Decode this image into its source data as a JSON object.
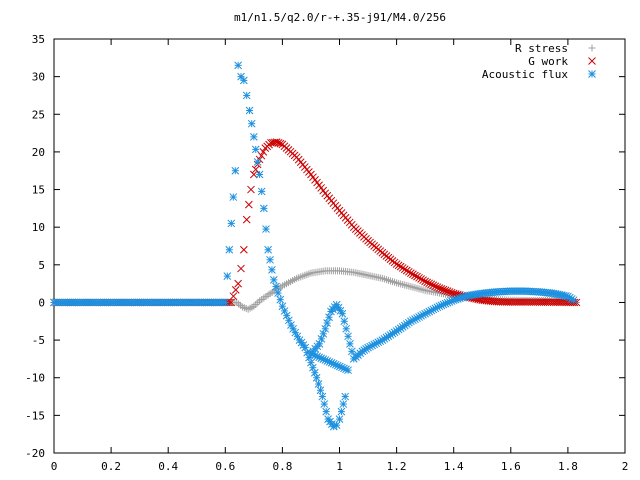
{
  "chart_data": {
    "type": "scatter",
    "title": "m1/n1.5/q2.0/r-+.35-j91/M4.0/256",
    "xlabel": "",
    "ylabel": "",
    "xlim": [
      0,
      2
    ],
    "ylim": [
      -20,
      35
    ],
    "x_ticks": [
      0,
      0.2,
      0.4,
      0.6,
      0.8,
      1,
      1.2,
      1.4,
      1.6,
      1.8,
      2
    ],
    "x_tick_labels": [
      "0",
      "0.2",
      "0.4",
      "0.6",
      "0.8",
      "1",
      "1.2",
      "1.4",
      "1.6",
      "1.8",
      "2"
    ],
    "y_ticks": [
      -20,
      -15,
      -10,
      -5,
      0,
      5,
      10,
      15,
      20,
      25,
      30,
      35
    ],
    "y_tick_labels": [
      "-20",
      "-15",
      "-10",
      "-5",
      "0",
      "5",
      "10",
      "15",
      "20",
      "25",
      "30",
      "35"
    ],
    "legend_position": "top-right",
    "series": [
      {
        "name": "R stress",
        "marker": "plus",
        "color": "#a0a0a0",
        "points": [
          [
            0.0,
            0
          ],
          [
            0.6,
            0
          ],
          [
            0.64,
            0
          ],
          [
            0.66,
            -0.6
          ],
          [
            0.68,
            -0.9
          ],
          [
            0.7,
            -0.5
          ],
          [
            0.72,
            0.2
          ],
          [
            0.75,
            1.0
          ],
          [
            0.8,
            2.2
          ],
          [
            0.85,
            3.2
          ],
          [
            0.9,
            3.9
          ],
          [
            0.95,
            4.2
          ],
          [
            1.0,
            4.2
          ],
          [
            1.05,
            4.0
          ],
          [
            1.1,
            3.6
          ],
          [
            1.15,
            3.2
          ],
          [
            1.2,
            2.6
          ],
          [
            1.3,
            1.6
          ],
          [
            1.4,
            0.9
          ],
          [
            1.5,
            0.5
          ],
          [
            1.6,
            0.3
          ],
          [
            1.7,
            0.25
          ],
          [
            1.75,
            0.3
          ],
          [
            1.8,
            0.2
          ],
          [
            1.83,
            0
          ]
        ]
      },
      {
        "name": "G work",
        "marker": "cross",
        "color": "#cc0000",
        "points": [
          [
            0.0,
            0
          ],
          [
            0.62,
            0
          ],
          [
            0.645,
            2.5
          ],
          [
            0.655,
            4.5
          ],
          [
            0.665,
            7
          ],
          [
            0.675,
            11
          ],
          [
            0.69,
            15
          ],
          [
            0.7,
            17
          ],
          [
            0.72,
            19
          ],
          [
            0.74,
            20.5
          ],
          [
            0.76,
            21.2
          ],
          [
            0.78,
            21.3
          ],
          [
            0.8,
            21
          ],
          [
            0.85,
            19.3
          ],
          [
            0.9,
            17
          ],
          [
            0.95,
            14.5
          ],
          [
            1.0,
            12.2
          ],
          [
            1.05,
            10
          ],
          [
            1.1,
            8.2
          ],
          [
            1.15,
            6.6
          ],
          [
            1.2,
            5.1
          ],
          [
            1.25,
            3.9
          ],
          [
            1.3,
            2.8
          ],
          [
            1.35,
            1.9
          ],
          [
            1.4,
            1.2
          ],
          [
            1.45,
            0.7
          ],
          [
            1.5,
            0.3
          ],
          [
            1.55,
            0.1
          ],
          [
            1.6,
            0.05
          ],
          [
            1.7,
            0.05
          ],
          [
            1.83,
            0
          ]
        ]
      },
      {
        "name": "Acoustic flux",
        "marker": "star",
        "color": "#1e90e0",
        "points": [
          [
            0.0,
            0
          ],
          [
            0.6,
            0
          ],
          [
            0.635,
            17.5
          ],
          [
            0.645,
            31.5
          ],
          [
            0.655,
            30
          ],
          [
            0.665,
            29.5
          ],
          [
            0.675,
            27.5
          ],
          [
            0.685,
            25.5
          ],
          [
            0.7,
            22
          ],
          [
            0.72,
            17
          ],
          [
            0.735,
            12.5
          ],
          [
            0.75,
            7
          ],
          [
            0.77,
            3
          ],
          [
            0.8,
            -0.5
          ],
          [
            0.83,
            -3
          ],
          [
            0.86,
            -5
          ],
          [
            0.88,
            -6
          ],
          [
            0.9,
            -8
          ],
          [
            0.92,
            -10
          ],
          [
            0.94,
            -12.5
          ],
          [
            0.96,
            -15.5
          ],
          [
            0.98,
            -16.5
          ],
          [
            0.99,
            -16.3
          ],
          [
            1.0,
            -15.5
          ],
          [
            1.02,
            -12.5
          ],
          [
            1.03,
            -9
          ],
          [
            0.9,
            -6.8
          ],
          [
            0.93,
            -5.5
          ],
          [
            0.95,
            -3.5
          ],
          [
            0.97,
            -1.2
          ],
          [
            0.99,
            -0.3
          ],
          [
            1.01,
            -1.5
          ],
          [
            1.03,
            -4.5
          ],
          [
            1.05,
            -7.5
          ],
          [
            1.08,
            -6.5
          ],
          [
            1.1,
            -6
          ],
          [
            1.15,
            -5
          ],
          [
            1.2,
            -3.8
          ],
          [
            1.25,
            -2.5
          ],
          [
            1.3,
            -1.5
          ],
          [
            1.35,
            -0.5
          ],
          [
            1.4,
            0.3
          ],
          [
            1.45,
            0.9
          ],
          [
            1.5,
            1.2
          ],
          [
            1.55,
            1.4
          ],
          [
            1.6,
            1.5
          ],
          [
            1.65,
            1.5
          ],
          [
            1.7,
            1.4
          ],
          [
            1.75,
            1.2
          ],
          [
            1.8,
            0.8
          ],
          [
            1.82,
            0.3
          ]
        ]
      }
    ]
  }
}
